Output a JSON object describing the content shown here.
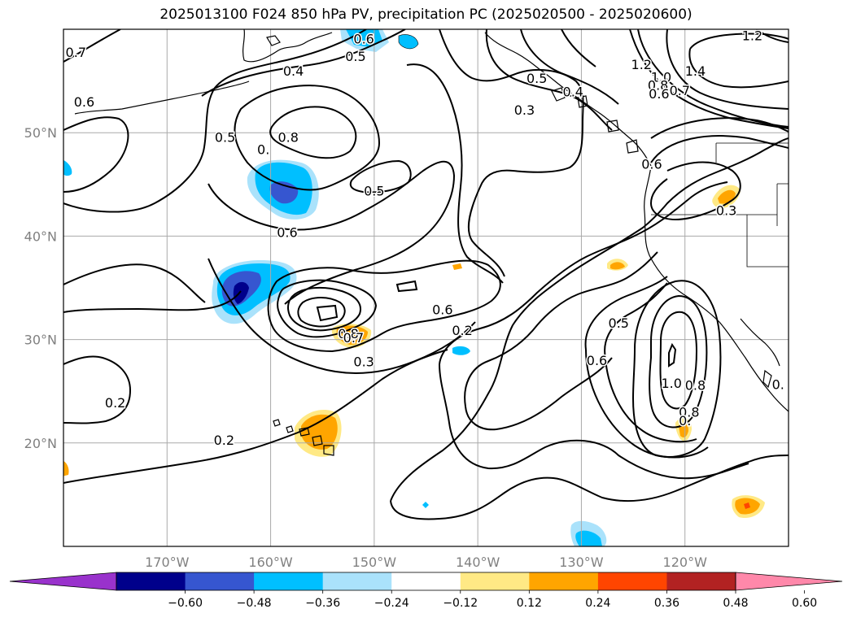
{
  "title": "2025013100 F024 850 hPa PV, precipitation PC (2025020500 - 2025020600)",
  "map": {
    "lon_range": [
      -180,
      -110
    ],
    "lat_range": [
      10,
      60
    ],
    "lon_ticks": [
      {
        "lon": -170,
        "label": "170°W"
      },
      {
        "lon": -160,
        "label": "160°W"
      },
      {
        "lon": -150,
        "label": "150°W"
      },
      {
        "lon": -140,
        "label": "140°W"
      },
      {
        "lon": -130,
        "label": "130°W"
      },
      {
        "lon": -120,
        "label": "120°W"
      }
    ],
    "lat_ticks": [
      {
        "lat": 20,
        "label": "20°N"
      },
      {
        "lat": 30,
        "label": "30°N"
      },
      {
        "lat": 40,
        "label": "40°N"
      },
      {
        "lat": 50,
        "label": "50°N"
      }
    ],
    "grid": true,
    "contour_labels": [
      {
        "lon": -178.8,
        "lat": 57.8,
        "text": "0.7"
      },
      {
        "lon": -178.0,
        "lat": 53.0,
        "text": "0.6"
      },
      {
        "lon": -164.4,
        "lat": 49.6,
        "text": "0.5"
      },
      {
        "lon": -157.8,
        "lat": 56.0,
        "text": "0.4"
      },
      {
        "lon": -151.0,
        "lat": 59.1,
        "text": "0.6"
      },
      {
        "lon": -151.8,
        "lat": 57.4,
        "text": "0.5"
      },
      {
        "lon": -158.3,
        "lat": 49.6,
        "text": "0.8"
      },
      {
        "lon": -160.7,
        "lat": 48.4,
        "text": "0."
      },
      {
        "lon": -150.0,
        "lat": 44.4,
        "text": "0.5"
      },
      {
        "lon": -158.4,
        "lat": 40.4,
        "text": "0.6"
      },
      {
        "lon": -143.4,
        "lat": 32.9,
        "text": "0.6"
      },
      {
        "lon": -152.5,
        "lat": 30.6,
        "text": "0.8"
      },
      {
        "lon": -152.0,
        "lat": 30.2,
        "text": "0.7"
      },
      {
        "lon": -141.5,
        "lat": 30.9,
        "text": "0.2"
      },
      {
        "lon": -151.0,
        "lat": 27.9,
        "text": "0.3"
      },
      {
        "lon": -175.0,
        "lat": 23.9,
        "text": "0.2"
      },
      {
        "lon": -164.5,
        "lat": 20.3,
        "text": "0.2"
      },
      {
        "lon": -134.3,
        "lat": 55.3,
        "text": "0.5"
      },
      {
        "lon": -130.8,
        "lat": 54.0,
        "text": "0.4"
      },
      {
        "lon": -135.5,
        "lat": 52.2,
        "text": "0.3"
      },
      {
        "lon": -124.2,
        "lat": 56.6,
        "text": "1.2"
      },
      {
        "lon": -122.3,
        "lat": 55.4,
        "text": "1.0"
      },
      {
        "lon": -122.6,
        "lat": 54.6,
        "text": "0.8"
      },
      {
        "lon": -120.5,
        "lat": 54.1,
        "text": "0.7"
      },
      {
        "lon": -122.5,
        "lat": 53.8,
        "text": "0.6"
      },
      {
        "lon": -119.0,
        "lat": 56.0,
        "text": "1.4"
      },
      {
        "lon": -113.5,
        "lat": 59.4,
        "text": "1.2"
      },
      {
        "lon": -123.2,
        "lat": 47.0,
        "text": "0.6"
      },
      {
        "lon": -116.0,
        "lat": 42.5,
        "text": "0.3"
      },
      {
        "lon": -126.4,
        "lat": 31.6,
        "text": "0.5"
      },
      {
        "lon": -128.5,
        "lat": 28.0,
        "text": "0.6"
      },
      {
        "lon": -121.3,
        "lat": 25.8,
        "text": "1.0"
      },
      {
        "lon": -119.0,
        "lat": 25.6,
        "text": "0.8"
      },
      {
        "lon": -119.6,
        "lat": 23.0,
        "text": "0.8"
      },
      {
        "lon": -120.0,
        "lat": 22.2,
        "text": "0."
      },
      {
        "lon": -111.0,
        "lat": 25.7,
        "text": "0."
      }
    ],
    "precip_colors": {
      "neg_0_48": "#00008b",
      "neg_0_36": "#3656d0",
      "neg_0_24": "#00bfff",
      "neg_0_12": "#aae2fb",
      "pos_0_12": "#ffe985",
      "pos_0_24": "#ffa500",
      "pos_0_36": "#ff4500"
    }
  },
  "colorbar": {
    "colors": [
      "#9932cc",
      "#00008b",
      "#3656d0",
      "#00bfff",
      "#aae2fb",
      "#ffffff",
      "#ffe985",
      "#ffa500",
      "#ff4500",
      "#b22222",
      "#ff88aa"
    ],
    "tick_labels": [
      "−0.60",
      "−0.48",
      "−0.36",
      "−0.24",
      "−0.12",
      "0.12",
      "0.24",
      "0.36",
      "0.48",
      "0.60"
    ]
  }
}
